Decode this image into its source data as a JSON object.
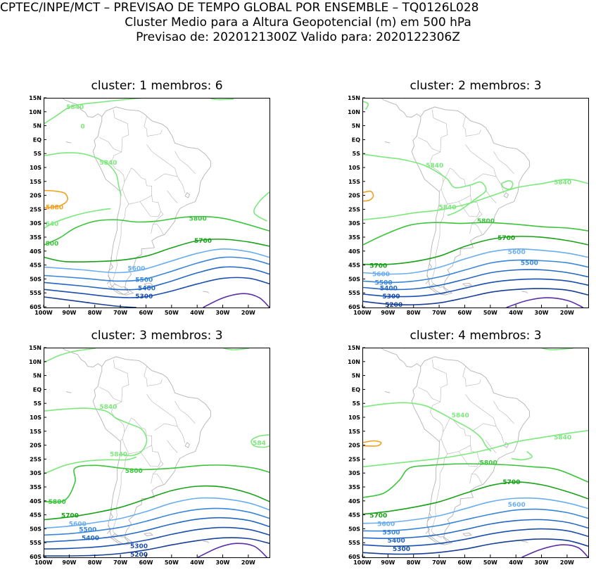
{
  "header": {
    "line1": "CPTEC/INPE/MCT – PREVISAO DE TEMPO GLOBAL POR ENSEMBLE – TQ0126L028",
    "line2": "Cluster Medio para a Altura Geopotencial (m) em 500 hPa",
    "line3": "Previsao de: 2020121300Z    Valido para: 2020122306Z"
  },
  "axes": {
    "lat_ticks": [
      "15N",
      "10N",
      "5N",
      "EQ",
      "5S",
      "10S",
      "15S",
      "20S",
      "25S",
      "30S",
      "35S",
      "40S",
      "45S",
      "50S",
      "55S",
      "60S"
    ],
    "lon_ticks": [
      "100W",
      "90W",
      "80W",
      "70W",
      "60W",
      "50W",
      "40W",
      "30W",
      "20W"
    ]
  },
  "colors": {
    "c5840": "#7de87d",
    "c5800": "#3cc43c",
    "c5700": "#1aa21a",
    "c5600": "#6aaef0",
    "c5500": "#3a86d8",
    "c5400": "#2467c4",
    "c5300": "#1a4fae",
    "c5200": "#173f96",
    "c5100": "#5a2ea6",
    "c5880": "#f0a020",
    "coast": "#b4b4b4"
  },
  "panels": [
    {
      "title": "cluster:  1   membros:  6",
      "labels": [
        {
          "text": "5840",
          "lon": -88,
          "lat": 12,
          "c": "c5840"
        },
        {
          "text": "0",
          "lon": -85,
          "lat": 5,
          "c": "c5840"
        },
        {
          "text": "5840",
          "lon": -75,
          "lat": -8,
          "c": "c5840"
        },
        {
          "text": "5880",
          "lon": -96,
          "lat": -24,
          "c": "c5880"
        },
        {
          "text": "640",
          "lon": -97,
          "lat": -30,
          "c": "c5840"
        },
        {
          "text": "5800",
          "lon": -40,
          "lat": -28,
          "c": "c5800"
        },
        {
          "text": "800",
          "lon": -97,
          "lat": -37,
          "c": "c5800"
        },
        {
          "text": "5700",
          "lon": -38,
          "lat": -36,
          "c": "c5700"
        },
        {
          "text": "5600",
          "lon": -64,
          "lat": -46,
          "c": "c5600"
        },
        {
          "text": "5500",
          "lon": -61,
          "lat": -50,
          "c": "c5500"
        },
        {
          "text": "5400",
          "lon": -60,
          "lat": -53,
          "c": "c5400"
        },
        {
          "text": "5300",
          "lon": -61,
          "lat": -56,
          "c": "c5300"
        }
      ]
    },
    {
      "title": "cluster:  2   membros:  3",
      "labels": [
        {
          "text": "5840",
          "lon": -72,
          "lat": -9,
          "c": "c5840"
        },
        {
          "text": "5840",
          "lon": -22,
          "lat": -15,
          "c": "c5840"
        },
        {
          "text": "5840",
          "lon": -67,
          "lat": -24,
          "c": "c5840"
        },
        {
          "text": "5800",
          "lon": -52,
          "lat": -29,
          "c": "c5800"
        },
        {
          "text": "5700",
          "lon": -44,
          "lat": -35,
          "c": "c5700"
        },
        {
          "text": "5600",
          "lon": -40,
          "lat": -40,
          "c": "c5600"
        },
        {
          "text": "5500",
          "lon": -35,
          "lat": -44,
          "c": "c5500"
        },
        {
          "text": "5700",
          "lon": -94,
          "lat": -45,
          "c": "c5700"
        },
        {
          "text": "5600",
          "lon": -93,
          "lat": -48,
          "c": "c5600"
        },
        {
          "text": "5500",
          "lon": -92,
          "lat": -51,
          "c": "c5500"
        },
        {
          "text": "5400",
          "lon": -90,
          "lat": -53,
          "c": "c5400"
        },
        {
          "text": "5300",
          "lon": -89,
          "lat": -56,
          "c": "c5300"
        },
        {
          "text": "5200",
          "lon": -88,
          "lat": -59,
          "c": "c5200"
        }
      ]
    },
    {
      "title": "cluster:  3   membros:  3",
      "labels": [
        {
          "text": "5840",
          "lon": -75,
          "lat": -6,
          "c": "c5840"
        },
        {
          "text": "584",
          "lon": -16,
          "lat": -19,
          "c": "c5840"
        },
        {
          "text": "5840",
          "lon": -71,
          "lat": -23,
          "c": "c5840"
        },
        {
          "text": "5800",
          "lon": -65,
          "lat": -29,
          "c": "c5800"
        },
        {
          "text": "5800",
          "lon": -95,
          "lat": -40,
          "c": "c5800"
        },
        {
          "text": "5700",
          "lon": -90,
          "lat": -45,
          "c": "c5700"
        },
        {
          "text": "5600",
          "lon": -87,
          "lat": -48,
          "c": "c5600"
        },
        {
          "text": "5500",
          "lon": -83,
          "lat": -50,
          "c": "c5500"
        },
        {
          "text": "5400",
          "lon": -82,
          "lat": -53,
          "c": "c5400"
        },
        {
          "text": "5300",
          "lon": -63,
          "lat": -56,
          "c": "c5300"
        },
        {
          "text": "5200",
          "lon": -63,
          "lat": -59,
          "c": "c5200"
        }
      ]
    },
    {
      "title": "cluster:  4   membros:  3",
      "labels": [
        {
          "text": "5840",
          "lon": -62,
          "lat": -9,
          "c": "c5840"
        },
        {
          "text": "5840",
          "lon": -22,
          "lat": -17,
          "c": "c5840"
        },
        {
          "text": "5800",
          "lon": -51,
          "lat": -26,
          "c": "c5800"
        },
        {
          "text": "5700",
          "lon": -42,
          "lat": -33,
          "c": "c5700"
        },
        {
          "text": "5700",
          "lon": -94,
          "lat": -45,
          "c": "c5700"
        },
        {
          "text": "5600",
          "lon": -40,
          "lat": -41,
          "c": "c5600"
        },
        {
          "text": "5600",
          "lon": -91,
          "lat": -48,
          "c": "c5600"
        },
        {
          "text": "5500",
          "lon": -89,
          "lat": -51,
          "c": "c5500"
        },
        {
          "text": "5400",
          "lon": -87,
          "lat": -54,
          "c": "c5400"
        },
        {
          "text": "5300",
          "lon": -85,
          "lat": -57,
          "c": "c5300"
        }
      ]
    }
  ]
}
